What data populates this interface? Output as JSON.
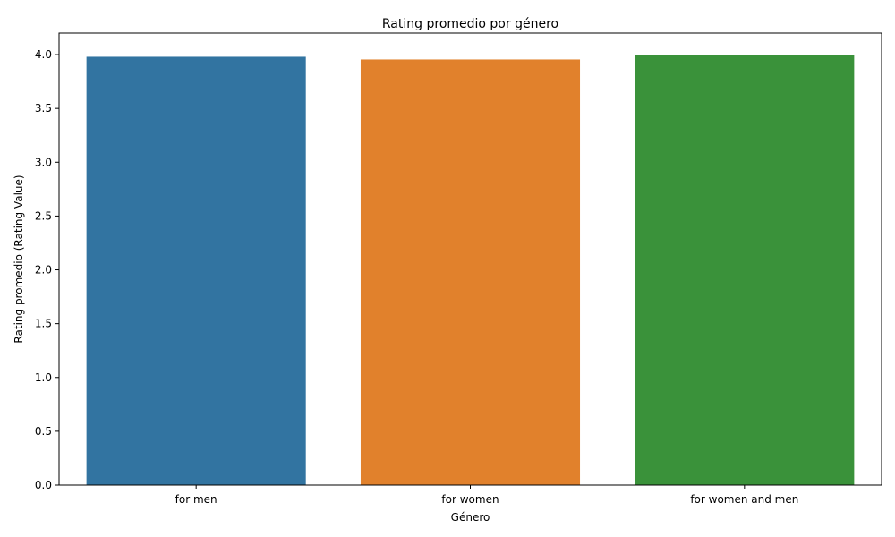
{
  "chart_data": {
    "type": "bar",
    "title": "Rating promedio por género",
    "xlabel": "Género",
    "ylabel": "Rating promedio (Rating Value)",
    "categories": [
      "for men",
      "for women",
      "for women and men"
    ],
    "values": [
      3.98,
      3.955,
      4.0
    ],
    "colors": [
      "#3274a1",
      "#e1812c",
      "#3a923a"
    ],
    "ylim": [
      0,
      4.2
    ],
    "yticks": [
      "0.0",
      "0.5",
      "1.0",
      "1.5",
      "2.0",
      "2.5",
      "3.0",
      "3.5",
      "4.0"
    ],
    "grid": false,
    "legend": "none"
  }
}
